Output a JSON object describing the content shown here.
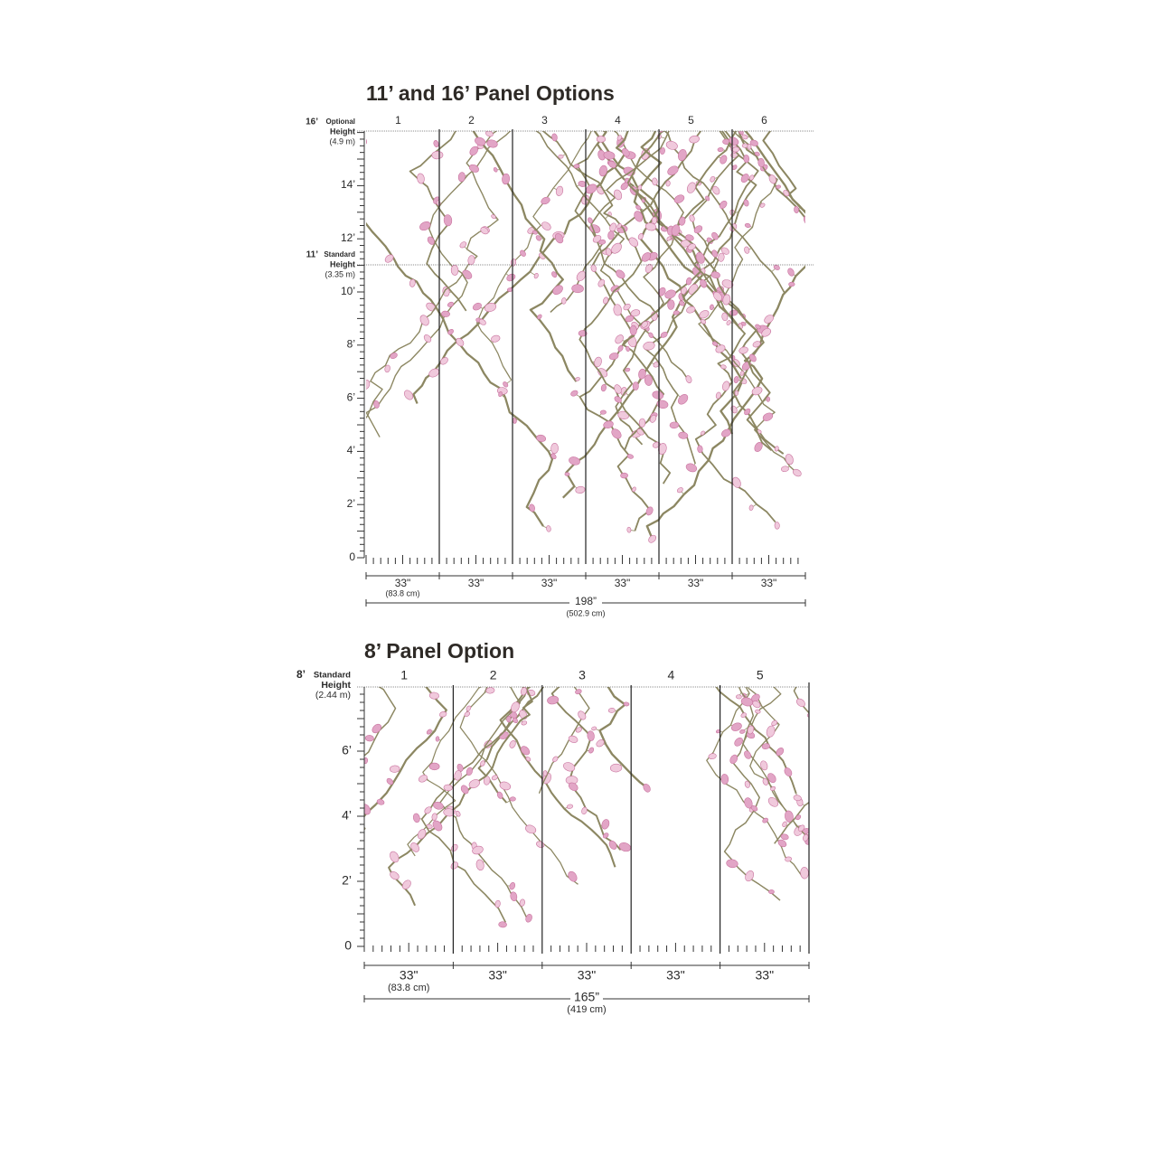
{
  "sections": [
    {
      "title": "11’ and 16’ Panel Options",
      "panels": [
        "1",
        "2",
        "3",
        "4",
        "5",
        "6"
      ],
      "heights": [
        {
          "feet": "16’",
          "label": "Optional",
          "line2": "Height",
          "metric": "(4.9 m)"
        },
        {
          "feet": "11’",
          "label": "Standard",
          "line2": "Height",
          "metric": "(3.35 m)"
        }
      ],
      "height_ticks": [
        "14’",
        "12’",
        "10’",
        "8’",
        "6’",
        "4’",
        "2’",
        "0"
      ],
      "panel_widths": [
        "33\"",
        "33\"",
        "33\"",
        "33\"",
        "33\"",
        "33\""
      ],
      "panel_width_metric": "(83.8 cm)",
      "total_width": "198”",
      "total_width_metric": "(502.9 cm)"
    },
    {
      "title": "8’ Panel Option",
      "panels": [
        "1",
        "2",
        "3",
        "4",
        "5"
      ],
      "heights": [
        {
          "feet": "8’",
          "label": "Standard",
          "line2": "Height",
          "metric": "(2.44 m)"
        }
      ],
      "height_ticks": [
        "6’",
        "4’",
        "2’",
        "0"
      ],
      "panel_widths": [
        "33\"",
        "33\"",
        "33\"",
        "33\"",
        "33\""
      ],
      "panel_width_metric": "(83.8 cm)",
      "total_width": "165”",
      "total_width_metric": "(419 cm)"
    }
  ]
}
